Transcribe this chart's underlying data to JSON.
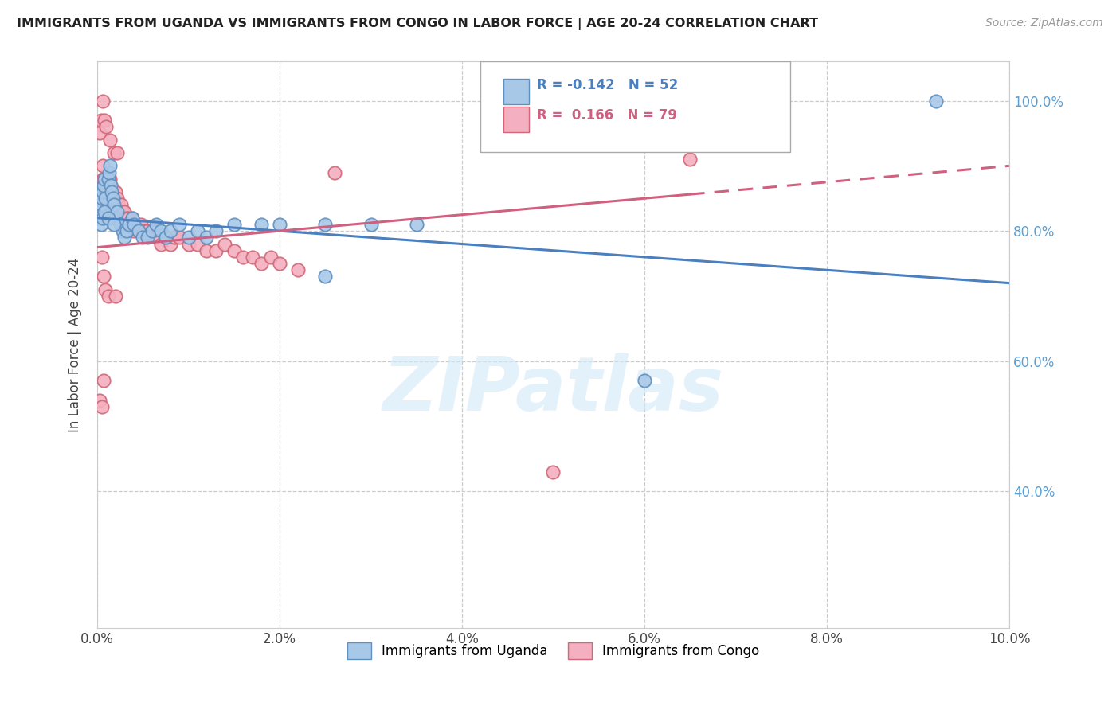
{
  "title": "IMMIGRANTS FROM UGANDA VS IMMIGRANTS FROM CONGO IN LABOR FORCE | AGE 20-24 CORRELATION CHART",
  "source": "Source: ZipAtlas.com",
  "ylabel": "In Labor Force | Age 20-24",
  "x_min": 0.0,
  "x_max": 0.1,
  "y_min": 0.19,
  "y_max": 1.06,
  "x_ticks": [
    0.0,
    0.02,
    0.04,
    0.06,
    0.08,
    0.1
  ],
  "x_tick_labels": [
    "0.0%",
    "2.0%",
    "4.0%",
    "6.0%",
    "8.0%",
    "10.0%"
  ],
  "y_ticks": [
    0.4,
    0.6,
    0.8,
    1.0
  ],
  "y_tick_labels": [
    "40.0%",
    "60.0%",
    "80.0%",
    "100.0%"
  ],
  "grid_color": "#cccccc",
  "background_color": "#ffffff",
  "blue_color": "#a8c8e8",
  "pink_color": "#f4b0c0",
  "blue_edge": "#6090c0",
  "pink_edge": "#d06878",
  "R_blue": -0.142,
  "N_blue": 52,
  "R_pink": 0.166,
  "N_pink": 79,
  "legend_label_blue": "Immigrants from Uganda",
  "legend_label_pink": "Immigrants from Congo",
  "watermark": "ZIPatlas",
  "blue_scatter_x": [
    0.0002,
    0.0003,
    0.0004,
    0.0005,
    0.0006,
    0.0007,
    0.0008,
    0.0009,
    0.001,
    0.0012,
    0.0013,
    0.0014,
    0.0015,
    0.0016,
    0.0017,
    0.0018,
    0.002,
    0.0022,
    0.0025,
    0.0028,
    0.003,
    0.0032,
    0.0035,
    0.0038,
    0.004,
    0.0045,
    0.005,
    0.0055,
    0.006,
    0.0065,
    0.007,
    0.0075,
    0.008,
    0.009,
    0.01,
    0.011,
    0.012,
    0.013,
    0.015,
    0.018,
    0.02,
    0.025,
    0.03,
    0.035,
    0.0004,
    0.0006,
    0.0008,
    0.0012,
    0.0018,
    0.025,
    0.06,
    0.092
  ],
  "blue_scatter_y": [
    0.83,
    0.82,
    0.84,
    0.85,
    0.86,
    0.87,
    0.88,
    0.85,
    0.82,
    0.88,
    0.89,
    0.9,
    0.87,
    0.86,
    0.85,
    0.84,
    0.82,
    0.83,
    0.81,
    0.8,
    0.79,
    0.8,
    0.81,
    0.82,
    0.81,
    0.8,
    0.79,
    0.79,
    0.8,
    0.81,
    0.8,
    0.79,
    0.8,
    0.81,
    0.79,
    0.8,
    0.79,
    0.8,
    0.81,
    0.81,
    0.81,
    0.81,
    0.81,
    0.81,
    0.81,
    0.82,
    0.83,
    0.82,
    0.81,
    0.73,
    0.57,
    1.0
  ],
  "pink_scatter_x": [
    0.0002,
    0.0003,
    0.0004,
    0.0005,
    0.0005,
    0.0006,
    0.0006,
    0.0007,
    0.0008,
    0.0008,
    0.0009,
    0.001,
    0.001,
    0.0011,
    0.0012,
    0.0013,
    0.0014,
    0.0015,
    0.0016,
    0.0017,
    0.0018,
    0.0019,
    0.002,
    0.002,
    0.0022,
    0.0023,
    0.0025,
    0.0026,
    0.0028,
    0.003,
    0.0032,
    0.0034,
    0.0036,
    0.0038,
    0.004,
    0.004,
    0.0042,
    0.0045,
    0.0048,
    0.005,
    0.0055,
    0.006,
    0.0065,
    0.007,
    0.0075,
    0.008,
    0.0085,
    0.009,
    0.01,
    0.011,
    0.012,
    0.013,
    0.014,
    0.015,
    0.016,
    0.017,
    0.018,
    0.019,
    0.02,
    0.022,
    0.0003,
    0.0004,
    0.0006,
    0.0008,
    0.001,
    0.0014,
    0.0018,
    0.0022,
    0.0005,
    0.0007,
    0.0009,
    0.0012,
    0.002,
    0.026,
    0.05,
    0.065,
    0.0003,
    0.0005,
    0.0007
  ],
  "pink_scatter_y": [
    0.83,
    0.84,
    0.82,
    0.86,
    0.87,
    0.88,
    0.9,
    0.87,
    0.85,
    0.88,
    0.85,
    0.84,
    0.86,
    0.87,
    0.85,
    0.87,
    0.88,
    0.87,
    0.86,
    0.85,
    0.84,
    0.85,
    0.84,
    0.86,
    0.85,
    0.84,
    0.83,
    0.84,
    0.83,
    0.83,
    0.82,
    0.82,
    0.81,
    0.82,
    0.81,
    0.8,
    0.81,
    0.8,
    0.81,
    0.8,
    0.8,
    0.8,
    0.79,
    0.78,
    0.79,
    0.78,
    0.79,
    0.79,
    0.78,
    0.78,
    0.77,
    0.77,
    0.78,
    0.77,
    0.76,
    0.76,
    0.75,
    0.76,
    0.75,
    0.74,
    0.95,
    0.97,
    1.0,
    0.97,
    0.96,
    0.94,
    0.92,
    0.92,
    0.76,
    0.73,
    0.71,
    0.7,
    0.7,
    0.89,
    0.43,
    0.91,
    0.54,
    0.53,
    0.57
  ],
  "blue_line_x0": 0.0,
  "blue_line_x1": 0.1,
  "blue_line_y0": 0.82,
  "blue_line_y1": 0.72,
  "pink_line_x0": 0.0,
  "pink_line_x1": 0.1,
  "pink_line_y0": 0.775,
  "pink_line_y1": 0.9,
  "pink_line_dashed_x": 0.065
}
